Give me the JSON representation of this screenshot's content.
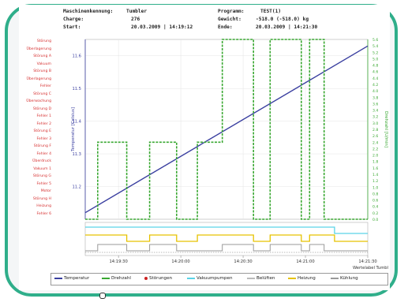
{
  "header": {
    "machine_label": "Maschinenkennung:",
    "machine_value": "Tumbler",
    "program_label": "Programm:",
    "program_value": "TEST(1)",
    "charge_label": "Charge:",
    "charge_value": "276",
    "weight_label": "Gewicht:",
    "weight_value": "-518.0 (-518.0) kg",
    "start_label": "Start:",
    "start_value": "20.03.2009 | 14:19:12",
    "end_label": "Ende:",
    "end_value": "20.03.2009 | 14:21:30"
  },
  "left_labels": [
    "Störung",
    "Überlagerung",
    "Störung A",
    "Vakuum",
    "Störung B",
    "Überlagerung",
    "Fehler",
    "Störung C",
    "Überwachung",
    "Störung D",
    "Fehler 1",
    "Fehler 2",
    "Störung E",
    "Fehler 3",
    "Störung F",
    "Fehler 4",
    "Überdruck",
    "Vakuum 1",
    "Störung G",
    "Fehler 5",
    "Motor",
    "Störung H",
    "Heizung",
    "Fehler 6"
  ],
  "legend": {
    "temperature": "Temperatur",
    "speed": "Drehzahl",
    "faults": "Störungen",
    "vacuum_pumps": "Vakuumpumpen",
    "ventilate": "Belüften",
    "heating": "Heizung",
    "cooling": "Kühlung"
  },
  "colors": {
    "temperature": "#3a3fa0",
    "speed": "#3aa832",
    "faults": "#cc2222",
    "vacuum": "#5ad3e6",
    "heating": "#e6c200",
    "cooling": "#999999",
    "frame": "#2fae8a"
  },
  "chart_data": {
    "type": "line",
    "x_ticks": [
      "14:19:30",
      "14:20:00",
      "14:20:30",
      "14:21:00",
      "14:21:30"
    ],
    "xlabel": "Wertelabel Tumbl",
    "ylabel_left": "Temperatur [Celsius]",
    "ylabel_right": "Drehzahl [U/min]",
    "ylim_left": [
      11.1,
      11.65
    ],
    "ylim_right": [
      0,
      5.6
    ],
    "y_ticks_left": [
      "11.6",
      "11.5",
      "11.4",
      "11.3",
      "11.2"
    ],
    "y_ticks_right": [
      "5.6",
      "5.4",
      "5.2",
      "5.0",
      "4.8",
      "4.6",
      "4.4",
      "4.2",
      "4.0",
      "3.8",
      "3.6",
      "3.4",
      "3.2",
      "3.0",
      "2.8",
      "2.6",
      "2.4",
      "2.2",
      "2.0",
      "1.8",
      "1.6",
      "1.4",
      "1.2",
      "1.0",
      "0.8",
      "0.6",
      "0.4",
      "0.2",
      "0.0"
    ],
    "x_domain": [
      "14:19:14",
      "14:21:30"
    ],
    "series": [
      {
        "name": "Temperatur",
        "style": "solid",
        "points": [
          [
            "14:19:14",
            11.12
          ],
          [
            "14:21:30",
            11.63
          ]
        ]
      },
      {
        "name": "Drehzahl",
        "style": "dashed",
        "points": [
          [
            "14:19:14",
            0
          ],
          [
            "14:19:20",
            0
          ],
          [
            "14:19:20",
            2.4
          ],
          [
            "14:19:34",
            2.4
          ],
          [
            "14:19:34",
            0
          ],
          [
            "14:19:45",
            0
          ],
          [
            "14:19:45",
            2.4
          ],
          [
            "14:19:58",
            2.4
          ],
          [
            "14:19:58",
            0
          ],
          [
            "14:20:08",
            0
          ],
          [
            "14:20:08",
            2.4
          ],
          [
            "14:20:20",
            2.4
          ],
          [
            "14:20:20",
            5.6
          ],
          [
            "14:20:35",
            5.6
          ],
          [
            "14:20:35",
            0
          ],
          [
            "14:20:43",
            0
          ],
          [
            "14:20:43",
            5.6
          ],
          [
            "14:20:58",
            5.6
          ],
          [
            "14:20:58",
            0
          ],
          [
            "14:21:02",
            0
          ],
          [
            "14:21:02",
            5.6
          ],
          [
            "14:21:09",
            5.6
          ],
          [
            "14:21:09",
            0
          ],
          [
            "14:21:30",
            0
          ]
        ]
      }
    ],
    "digital_traces": [
      {
        "name": "Vakuumpumpen",
        "segments": [
          [
            "14:19:14",
            1
          ],
          [
            "14:21:14",
            1
          ],
          [
            "14:21:14",
            0
          ],
          [
            "14:21:30",
            0
          ]
        ]
      },
      {
        "name": "Heizung",
        "segments": [
          [
            "14:19:14",
            1
          ],
          [
            "14:19:34",
            1
          ],
          [
            "14:19:34",
            0
          ],
          [
            "14:19:45",
            0
          ],
          [
            "14:19:45",
            1
          ],
          [
            "14:19:58",
            1
          ],
          [
            "14:19:58",
            0
          ],
          [
            "14:20:08",
            0
          ],
          [
            "14:20:08",
            1
          ],
          [
            "14:20:35",
            1
          ],
          [
            "14:20:35",
            0
          ],
          [
            "14:20:43",
            0
          ],
          [
            "14:20:43",
            1
          ],
          [
            "14:20:58",
            1
          ],
          [
            "14:20:58",
            0
          ],
          [
            "14:21:02",
            0
          ],
          [
            "14:21:02",
            1
          ],
          [
            "14:21:14",
            1
          ],
          [
            "14:21:14",
            0
          ],
          [
            "14:21:30",
            0
          ]
        ]
      },
      {
        "name": "Kühlung",
        "segments": [
          [
            "14:19:14",
            0
          ],
          [
            "14:19:20",
            0
          ],
          [
            "14:19:20",
            1
          ],
          [
            "14:19:34",
            1
          ],
          [
            "14:19:34",
            0
          ],
          [
            "14:19:45",
            0
          ],
          [
            "14:19:45",
            1
          ],
          [
            "14:19:58",
            1
          ],
          [
            "14:19:58",
            0
          ],
          [
            "14:20:20",
            0
          ],
          [
            "14:20:20",
            1
          ],
          [
            "14:20:35",
            1
          ],
          [
            "14:20:35",
            0
          ],
          [
            "14:20:43",
            0
          ],
          [
            "14:20:43",
            1
          ],
          [
            "14:20:58",
            1
          ],
          [
            "14:20:58",
            0
          ],
          [
            "14:21:02",
            0
          ],
          [
            "14:21:02",
            1
          ],
          [
            "14:21:09",
            1
          ],
          [
            "14:21:09",
            0
          ],
          [
            "14:21:30",
            0
          ]
        ]
      }
    ],
    "grid": true,
    "legend_position": "bottom"
  }
}
